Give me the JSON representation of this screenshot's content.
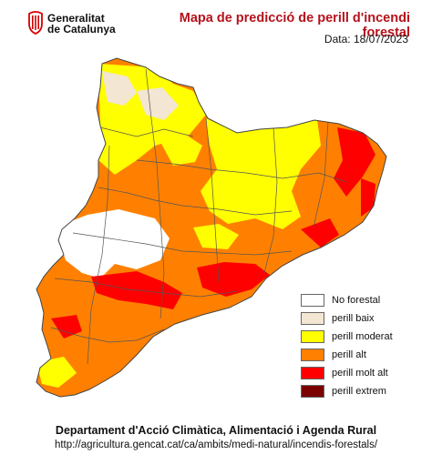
{
  "header": {
    "logo_line1": "Generalitat",
    "logo_line2": "de Catalunya",
    "title": "Mapa de predicció de perill d'incendi forestal",
    "date": "Data: 18/07/2023"
  },
  "legend": [
    {
      "label": "No forestal",
      "color": "#ffffff"
    },
    {
      "label": "perill baix",
      "color": "#f3e6d2"
    },
    {
      "label": "perill moderat",
      "color": "#ffff00"
    },
    {
      "label": "perill alt",
      "color": "#ff8000"
    },
    {
      "label": "perill molt alt",
      "color": "#ff0000"
    },
    {
      "label": "perill extrem",
      "color": "#7a0000"
    }
  ],
  "footer": {
    "department": "Departament d'Acció Climàtica, Alimentació i Agenda Rural",
    "url": "http://agricultura.gencat.cat/ca/ambits/medi-natural/incendis-forestals/"
  }
}
